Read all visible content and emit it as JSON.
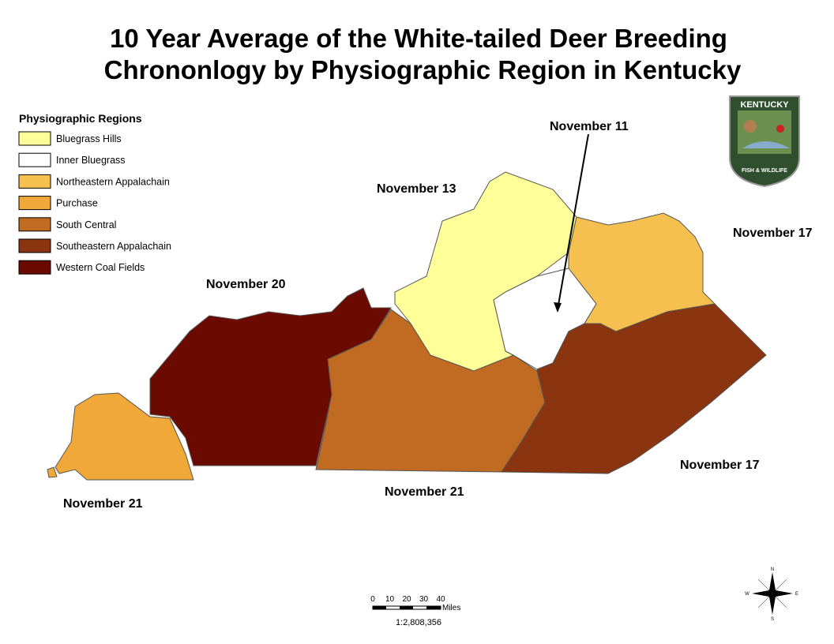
{
  "title": {
    "lines": [
      "10 Year Average of the White-tailed Deer Breeding",
      "Chrononlogy by Physiographic Region in Kentucky"
    ]
  },
  "legend": {
    "title": "Physiographic Regions",
    "items": [
      {
        "label": "Bluegrass Hills",
        "color": "#ffff99"
      },
      {
        "label": "Inner Bluegrass",
        "color": "#ffffff"
      },
      {
        "label": "Northeastern Appalachain",
        "color": "#f5c04f"
      },
      {
        "label": "Purchase",
        "color": "#f0a838"
      },
      {
        "label": "South Central",
        "color": "#c06a22"
      },
      {
        "label": "Southeastern Appalachain",
        "color": "#8a3410"
      },
      {
        "label": "Western Coal Fields",
        "color": "#6b0a00"
      }
    ]
  },
  "region_labels": [
    "November 11",
    "November 13",
    "November 17",
    "November 20",
    "November 21",
    "November 21",
    "November 17"
  ],
  "scale_bar": {
    "ticks": [
      "0",
      "10",
      "20",
      "30",
      "40"
    ],
    "unit": "Miles",
    "ratio": "1:2,808,356"
  },
  "compass": {
    "n": "N",
    "w": "W",
    "e": "E",
    "s": "S"
  },
  "logo": {
    "top": "KENTUCKY",
    "bottom": "FISH & WILDLIFE"
  }
}
